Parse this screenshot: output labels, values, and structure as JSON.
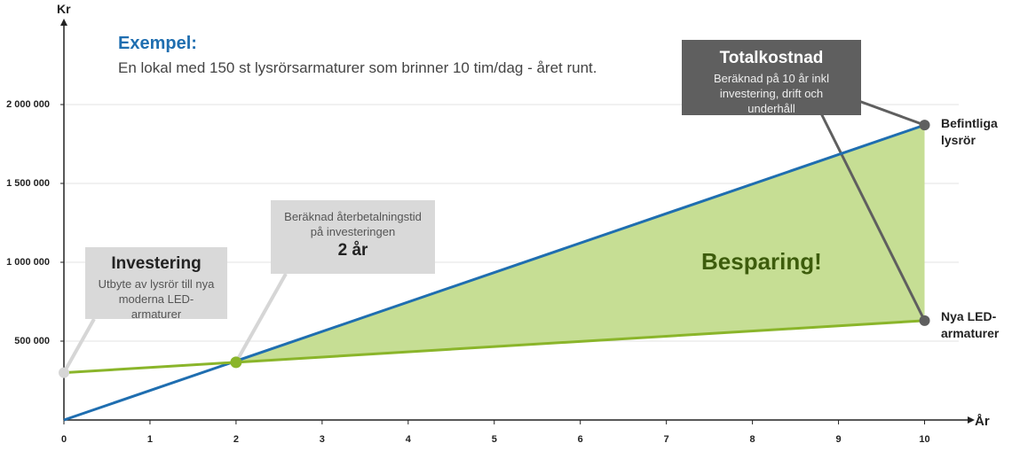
{
  "chart_data": {
    "type": "line",
    "title": "Exempel:",
    "subtitle": "En lokal med 150 st lysrörsarmaturer som brinner 10 tim/dag - året runt.",
    "y_label": "Kr",
    "x_label": "År",
    "x": [
      0,
      10
    ],
    "series": [
      {
        "name": "Befintliga lysrör",
        "color": "#1f6eb0",
        "values": [
          0,
          1870000
        ]
      },
      {
        "name": "Nya LED-armaturer",
        "color": "#8ab52a",
        "values": [
          300000,
          630000
        ]
      }
    ],
    "fill_color": "#c6de94",
    "xlim": [
      0,
      10.5
    ],
    "xticks": [
      0,
      1,
      2,
      3,
      4,
      5,
      6,
      7,
      8,
      9,
      10
    ],
    "ylim": [
      0,
      2500000
    ],
    "yticks": [
      {
        "value": 500000,
        "label": "500 000"
      },
      {
        "value": 1000000,
        "label": "1 000 000"
      },
      {
        "value": 1500000,
        "label": "1 500 000"
      },
      {
        "value": 2000000,
        "label": "2 000 000"
      }
    ],
    "grid": true,
    "annotations": {
      "investment": {
        "title": "Investering",
        "text": "Utbyte av lysrör till nya moderna LED-armaturer"
      },
      "payback": {
        "text": "Beräknad återbetalningstid på investeringen",
        "label": "2 år",
        "x": 2,
        "y": 366000
      },
      "total": {
        "title": "Totalkostnad",
        "text": "Beräknad på 10 år inkl investering, drift och underhåll"
      },
      "savings": "Besparing!"
    }
  }
}
